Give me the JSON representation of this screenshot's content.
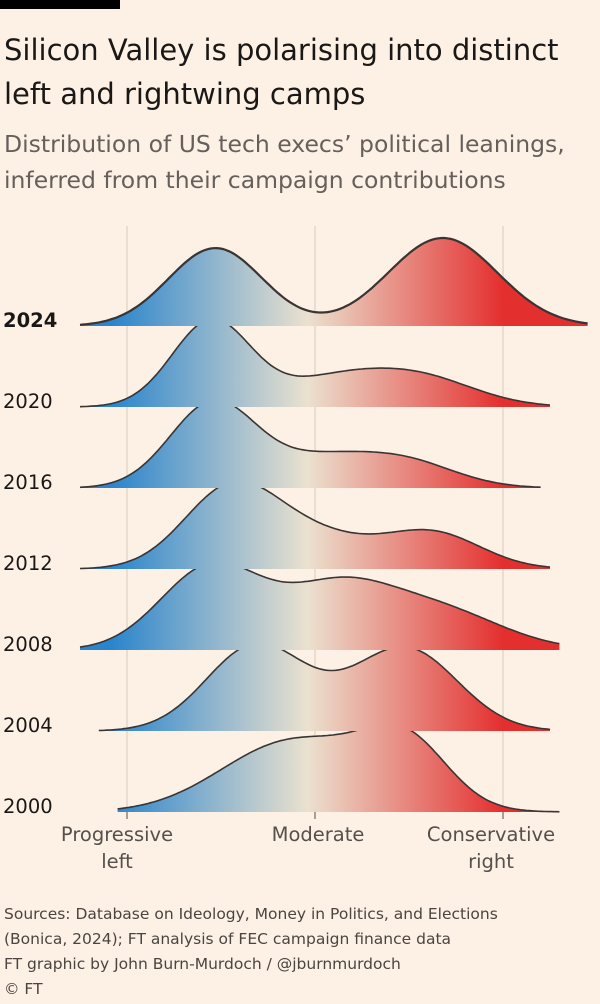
{
  "header": {
    "title_line1": "Silicon Valley is polarising into distinct",
    "title_line2": "left and rightwing camps",
    "subtitle_line1": "Distribution of US tech execs’ political leanings,",
    "subtitle_line2": "inferred from their campaign contributions"
  },
  "chart_data": {
    "type": "ridgeline",
    "title": "Silicon Valley is polarising into distinct left and rightwing camps",
    "subtitle": "Distribution of US tech execs’ political leanings, inferred from their campaign contributions",
    "x_axis": {
      "range": [
        -1.2,
        1.5
      ],
      "ticks": [
        {
          "value": -1,
          "label_lines": [
            "Progressive",
            "left"
          ]
        },
        {
          "value": 0,
          "label_lines": [
            "Moderate"
          ]
        },
        {
          "value": 1,
          "label_lines": [
            "Conservative",
            "right"
          ]
        }
      ]
    },
    "gradient_colors": [
      "#2b85cc",
      "#ebe1cf",
      "#e42f2f"
    ],
    "highlight_year": "2024",
    "series": [
      {
        "name": "2024",
        "peaks": [
          [
            -0.53,
            0.25,
            1.0
          ],
          [
            0.68,
            0.29,
            1.13
          ]
        ],
        "extent": [
          -1.25,
          1.45
        ]
      },
      {
        "name": "2020",
        "peaks": [
          [
            -0.55,
            0.21,
            1.49
          ],
          [
            0.05,
            0.27,
            0.37
          ],
          [
            0.52,
            0.31,
            0.55
          ]
        ],
        "extent": [
          -1.25,
          1.25
        ]
      },
      {
        "name": "2016",
        "peaks": [
          [
            -0.54,
            0.23,
            1.45
          ],
          [
            0.0,
            0.25,
            0.4
          ],
          [
            0.45,
            0.28,
            0.48
          ]
        ],
        "extent": [
          -1.25,
          1.2
        ]
      },
      {
        "name": "2012",
        "peaks": [
          [
            -0.45,
            0.25,
            1.15
          ],
          [
            0.0,
            0.28,
            0.45
          ],
          [
            0.62,
            0.26,
            0.53
          ]
        ],
        "extent": [
          -1.25,
          1.25
        ]
      },
      {
        "name": "2008",
        "peaks": [
          [
            -0.55,
            0.27,
            0.9
          ],
          [
            0.1,
            0.28,
            0.58
          ],
          [
            0.62,
            0.35,
            0.45
          ]
        ],
        "extent": [
          -1.25,
          1.3
        ]
      },
      {
        "name": "2004",
        "peaks": [
          [
            -0.32,
            0.26,
            0.93
          ],
          [
            0.5,
            0.27,
            0.83
          ],
          [
            0.2,
            0.3,
            0.15
          ]
        ],
        "extent": [
          -1.15,
          1.25
        ]
      },
      {
        "name": "2000",
        "peaks": [
          [
            -0.22,
            0.35,
            0.62
          ],
          [
            0.49,
            0.22,
            0.7
          ],
          [
            0.15,
            0.35,
            0.4
          ]
        ],
        "extent": [
          -1.05,
          1.3
        ]
      }
    ]
  },
  "footer": {
    "source_line1": "Sources: Database on Ideology, Money in Politics, and Elections",
    "source_line2": "(Bonica, 2024); FT analysis of FEC campaign finance data",
    "credit": "FT graphic by John Burn-Murdoch / @jburnmurdoch",
    "copyright": "© FT"
  }
}
